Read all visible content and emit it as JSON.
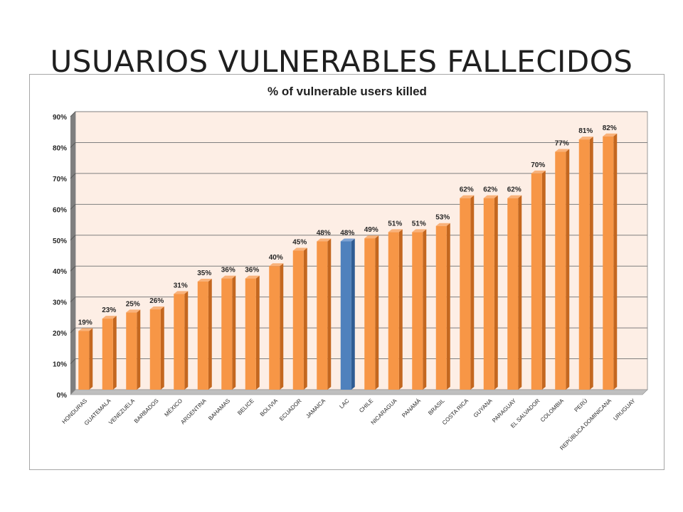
{
  "slide": {
    "title": "USUARIOS VULNERABLES FALLECIDOS"
  },
  "chart_data": {
    "type": "bar",
    "title": "% of vulnerable users killed",
    "xlabel": "",
    "ylabel": "",
    "ylim": [
      0,
      90
    ],
    "yticks": [
      "0%",
      "10%",
      "20%",
      "30%",
      "40%",
      "50%",
      "60%",
      "70%",
      "80%",
      "90%"
    ],
    "grid": true,
    "legend": "none",
    "categories": [
      "HONDURAS",
      "GUATEMALA",
      "VENEZUELA",
      "BARBADOS",
      "MÉXICO",
      "ARGENTINA",
      "BAHAMAS",
      "BELICE",
      "BOLIVIA",
      "ECUADOR",
      "JAMAICA",
      "LAC",
      "CHILE",
      "NICARAGUA",
      "PANAMÁ",
      "BRASIL",
      "COSTA RICA",
      "GUYANA",
      "PARAGUAY",
      "EL SALVADOR",
      "COLOMBIA",
      "PERÚ",
      "REPÚBLICA DOMINICANA",
      "URUGUAY"
    ],
    "values": [
      19,
      23,
      25,
      26,
      31,
      35,
      36,
      36,
      40,
      45,
      48,
      48,
      49,
      51,
      51,
      53,
      62,
      62,
      62,
      70,
      77,
      81,
      82,
      null
    ],
    "data_labels": [
      "19%",
      "23%",
      "25%",
      "26%",
      "31%",
      "35%",
      "36%",
      "36%",
      "40%",
      "45%",
      "48%",
      "48%",
      "49%",
      "51%",
      "51%",
      "53%",
      "62%",
      "62%",
      "62%",
      "70%",
      "77%",
      "81%",
      "82%",
      ""
    ],
    "highlight": "LAC",
    "colors": {
      "bar": "#f79646",
      "highlight": "#4f81bd",
      "plot_bg": "#fdeee5",
      "grid": "#7f7f7f"
    }
  }
}
